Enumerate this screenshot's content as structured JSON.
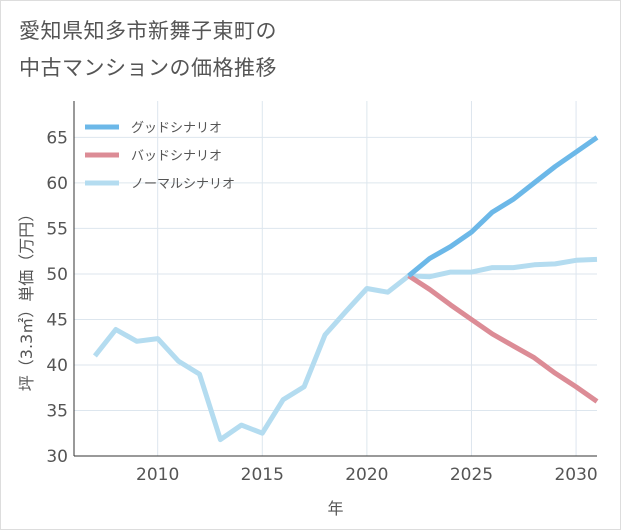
{
  "title_lines": [
    "愛知県知多市新舞子東町の",
    "中古マンションの価格推移"
  ],
  "chart_data": {
    "type": "line",
    "xlabel": "年",
    "ylabel": "坪（3.3㎡）単価（万円）",
    "xlim": [
      2006,
      2031
    ],
    "ylim": [
      30,
      69
    ],
    "xticks": [
      2010,
      2015,
      2020,
      2025,
      2030
    ],
    "yticks": [
      30,
      35,
      40,
      45,
      50,
      55,
      60,
      65
    ],
    "grid": true,
    "legend_position": "top-left",
    "series": [
      {
        "name": "グッドシナリオ",
        "color": "#6cb8e8",
        "x": [
          2022,
          2023,
          2024,
          2025,
          2026,
          2027,
          2028,
          2029,
          2030,
          2031
        ],
        "y": [
          49.8,
          51.7,
          53.0,
          54.6,
          56.8,
          58.2,
          60.0,
          61.8,
          63.4,
          65.0
        ]
      },
      {
        "name": "バッドシナリオ",
        "color": "#dc8c96",
        "x": [
          2022,
          2023,
          2024,
          2025,
          2026,
          2027,
          2028,
          2029,
          2030,
          2031
        ],
        "y": [
          49.8,
          48.3,
          46.6,
          45.0,
          43.4,
          42.1,
          40.8,
          39.1,
          37.6,
          36.0
        ]
      },
      {
        "name": "ノーマルシナリオ",
        "color": "#b4dcf0",
        "x": [
          2007,
          2008,
          2009,
          2010,
          2011,
          2012,
          2013,
          2014,
          2015,
          2016,
          2017,
          2018,
          2019,
          2020,
          2021,
          2022,
          2023,
          2024,
          2025,
          2026,
          2027,
          2028,
          2029,
          2030,
          2031
        ],
        "y": [
          41.0,
          43.9,
          42.6,
          42.9,
          40.4,
          39.0,
          31.8,
          33.4,
          32.5,
          36.2,
          37.6,
          43.3,
          45.9,
          48.4,
          48.0,
          49.8,
          49.7,
          50.2,
          50.2,
          50.7,
          50.7,
          51.0,
          51.1,
          51.5,
          51.6
        ]
      }
    ]
  }
}
